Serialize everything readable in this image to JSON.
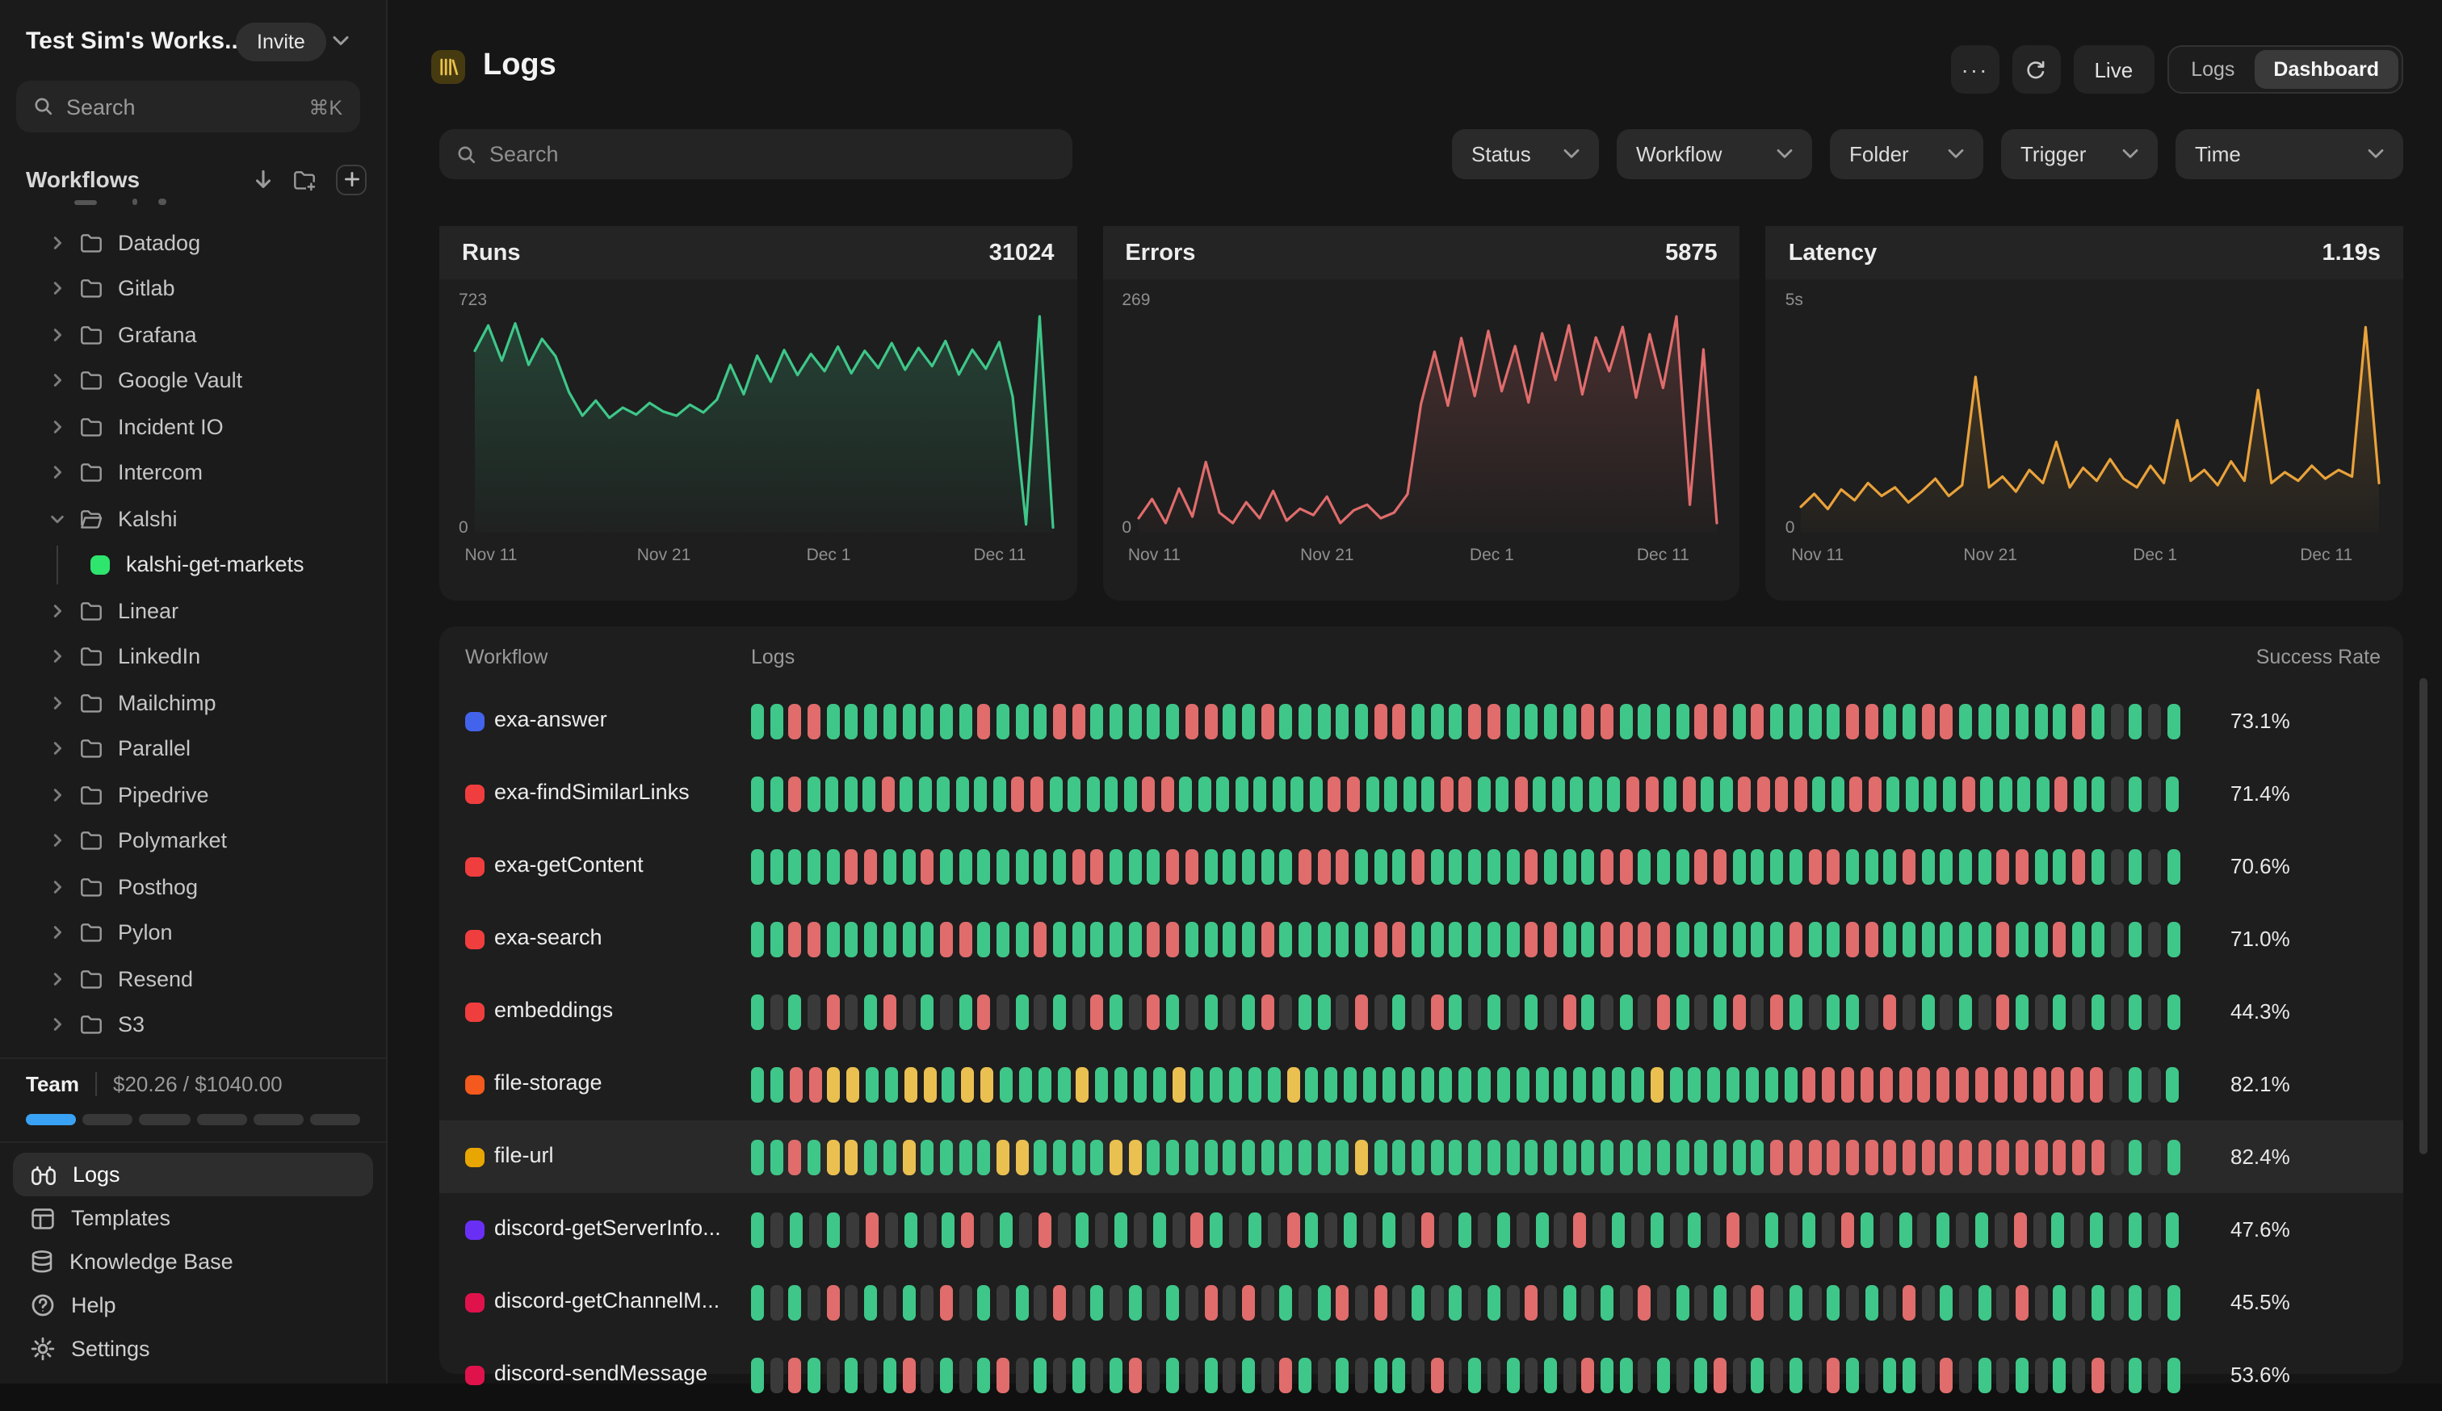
{
  "colors": {
    "accent_blue": "#3aa2f4",
    "bar_green": "#3ec789",
    "bar_red": "#e06c6c",
    "bar_yellow": "#eac050",
    "bar_gray": "#3a3a3a",
    "tile_gold": "#e7c14b"
  },
  "sidebar": {
    "workspace": "Test Sim's Works...",
    "invite_label": "Invite",
    "search": {
      "placeholder": "Search",
      "shortcut": "⌘K"
    },
    "workflows_label": "Workflows",
    "folders": [
      "Datadog",
      "Gitlab",
      "Grafana",
      "Google Vault",
      "Incident IO",
      "Intercom",
      "Kalshi",
      "Linear",
      "LinkedIn",
      "Mailchimp",
      "Parallel",
      "Pipedrive",
      "Polymarket",
      "Posthog",
      "Pylon",
      "Resend",
      "S3"
    ],
    "expanded_folder": "Kalshi",
    "expanded_child": {
      "label": "kalshi-get-markets",
      "color": "#2ee56e"
    },
    "team": {
      "label": "Team",
      "usage": "$20.26 / $1040.00",
      "segments": 6,
      "filled": 1
    },
    "nav": [
      {
        "label": "Logs",
        "icon": "logs",
        "active": true
      },
      {
        "label": "Templates",
        "icon": "templates",
        "active": false
      },
      {
        "label": "Knowledge Base",
        "icon": "knowledge",
        "active": false
      },
      {
        "label": "Help",
        "icon": "help",
        "active": false
      },
      {
        "label": "Settings",
        "icon": "settings",
        "active": false
      }
    ]
  },
  "header": {
    "title": "Logs",
    "more_label": "···",
    "live_label": "Live",
    "toggle": [
      "Logs",
      "Dashboard"
    ],
    "active_toggle": "Dashboard"
  },
  "filters": {
    "search_placeholder": "Search",
    "dropdowns": [
      "Status",
      "Workflow",
      "Folder",
      "Trigger",
      "Time"
    ]
  },
  "chart_data": [
    {
      "type": "area",
      "title": "Runs",
      "total": "31024",
      "ymax_label": "723",
      "y0_label": "0",
      "ymax": 723,
      "color": "#3ec789",
      "x_ticks": [
        "Nov 11",
        "Nov 21",
        "Dec 1",
        "Dec 11"
      ],
      "values": [
        608,
        693,
        575,
        700,
        561,
        648,
        590,
        470,
        391,
        442,
        384,
        418,
        395,
        434,
        405,
        391,
        428,
        402,
        445,
        561,
        463,
        592,
        505,
        611,
        527,
        598,
        540,
        622,
        533,
        608,
        551,
        634,
        545,
        618,
        557,
        641,
        529,
        612,
        548,
        637,
        455,
        28,
        723,
        18
      ]
    },
    {
      "type": "area",
      "title": "Errors",
      "total": "5875",
      "ymax_label": "269",
      "y0_label": "0",
      "ymax": 269,
      "color": "#e06c6c",
      "x_ticks": [
        "Nov 11",
        "Nov 21",
        "Dec 1",
        "Dec 11"
      ],
      "values": [
        18,
        42,
        12,
        55,
        20,
        88,
        25,
        12,
        38,
        18,
        52,
        15,
        30,
        22,
        45,
        12,
        28,
        35,
        18,
        25,
        48,
        160,
        225,
        158,
        242,
        170,
        251,
        176,
        232,
        162,
        248,
        190,
        258,
        172,
        243,
        201,
        256,
        168,
        247,
        180,
        269,
        35,
        228,
        12
      ]
    },
    {
      "type": "area",
      "title": "Latency",
      "total": "1.19s",
      "ymax_label": "5s",
      "y0_label": "0",
      "ymax": 5,
      "color": "#e9a23b",
      "x_ticks": [
        "Nov 11",
        "Nov 21",
        "Dec 1",
        "Dec 11"
      ],
      "values": [
        0.6,
        0.9,
        0.55,
        1.0,
        0.75,
        1.15,
        0.85,
        1.05,
        0.7,
        0.95,
        1.25,
        0.85,
        1.1,
        3.6,
        1.05,
        1.3,
        0.95,
        1.45,
        1.15,
        2.1,
        1.05,
        1.5,
        1.2,
        1.7,
        1.25,
        1.05,
        1.55,
        1.15,
        2.6,
        1.2,
        1.45,
        1.1,
        1.65,
        1.2,
        3.3,
        1.15,
        1.4,
        1.2,
        1.55,
        1.25,
        1.45,
        1.3,
        4.75,
        1.15
      ]
    }
  ],
  "table": {
    "columns": [
      "Workflow",
      "Logs",
      "Success Rate"
    ],
    "rows": [
      {
        "name": "exa-answer",
        "dot": "#4263eb",
        "rate": "73.1%",
        "highlight": false,
        "bars": "ggrrggggggggrgggrrgggggrrggrgggggrrgggrrggggrrggggrrgrggggrrggrrggggggrgxgxg"
      },
      {
        "name": "exa-findSimilarLinks",
        "dot": "#f03e3e",
        "rate": "71.4%",
        "highlight": false,
        "bars": "ggrggggrggggggrrgggggrrggggggggrrggggrrggrgggggrrgrggrrrrggrrggggrggggrggxgxg"
      },
      {
        "name": "exa-getContent",
        "dot": "#f03e3e",
        "rate": "70.6%",
        "highlight": false,
        "bars": "gggggrrggrgggggggrrgggrrgggggrrrgggrgggggrgggrrgggrrggggrrgggrggggrrggrgxgxg"
      },
      {
        "name": "exa-search",
        "dot": "#f03e3e",
        "rate": "71.0%",
        "highlight": false,
        "bars": "ggrrggggggrrgggrgggggrrggggrgggggrrggggggrrggrrrrggggggrggrrggggggrggrggxgxg"
      },
      {
        "name": "embeddings",
        "dot": "#f03e3e",
        "rate": "44.3%",
        "highlight": false,
        "bars": "gxgxrxgrxgxgrxgxgxrgxrgxgxgrxggxrxgxrgxgxgxrgxgxrgxgrxrgxggxrxgxgxrgxgxgxgxg"
      },
      {
        "name": "file-storage",
        "dot": "#f4591d",
        "rate": "82.1%",
        "highlight": false,
        "bars": "ggrryyggyygyyggggyggggygggggyggggggggggggggggggygggggggrrrrrrrrrrrrrrrrxgxg"
      },
      {
        "name": "file-url",
        "dot": "#e8a602",
        "rate": "82.4%",
        "highlight": true,
        "bars": "ggrgyyggyggggyyggggyygggggggggggygggggggggggggggggggggrrrrrrrrrrrrrrrrrrxgxg"
      },
      {
        "name": "discord-getServerInfo...",
        "dot": "#6a2ff5",
        "rate": "47.6%",
        "highlight": false,
        "bars": "gxgxgxrxgxgrxgxrxgxgxgxrgxgxrgxgxgxrxgxgxgxrxgxgxgxrxgxgxrgxgxgxgxrxgxgxgxg"
      },
      {
        "name": "discord-getChannelM...",
        "dot": "#e0124c",
        "rate": "45.5%",
        "highlight": false,
        "bars": "gxgxrxgxgxrxgxgxrxgxgxgxrxrxgxgrxrxgxgxgxrxgxgxrxgxgxrxgxgxgxrxgxgxrxgxgxgxg"
      },
      {
        "name": "discord-sendMessage",
        "dot": "#e0124c",
        "rate": "53.6%",
        "highlight": false,
        "bars": "gxrgxgxgrxgxgrxgxgxgrxgxgxgxrgxgxggxrxgxgxgxrggxgxgrxgxgxrgxggxrxgxgxgxrxgxg"
      }
    ]
  }
}
